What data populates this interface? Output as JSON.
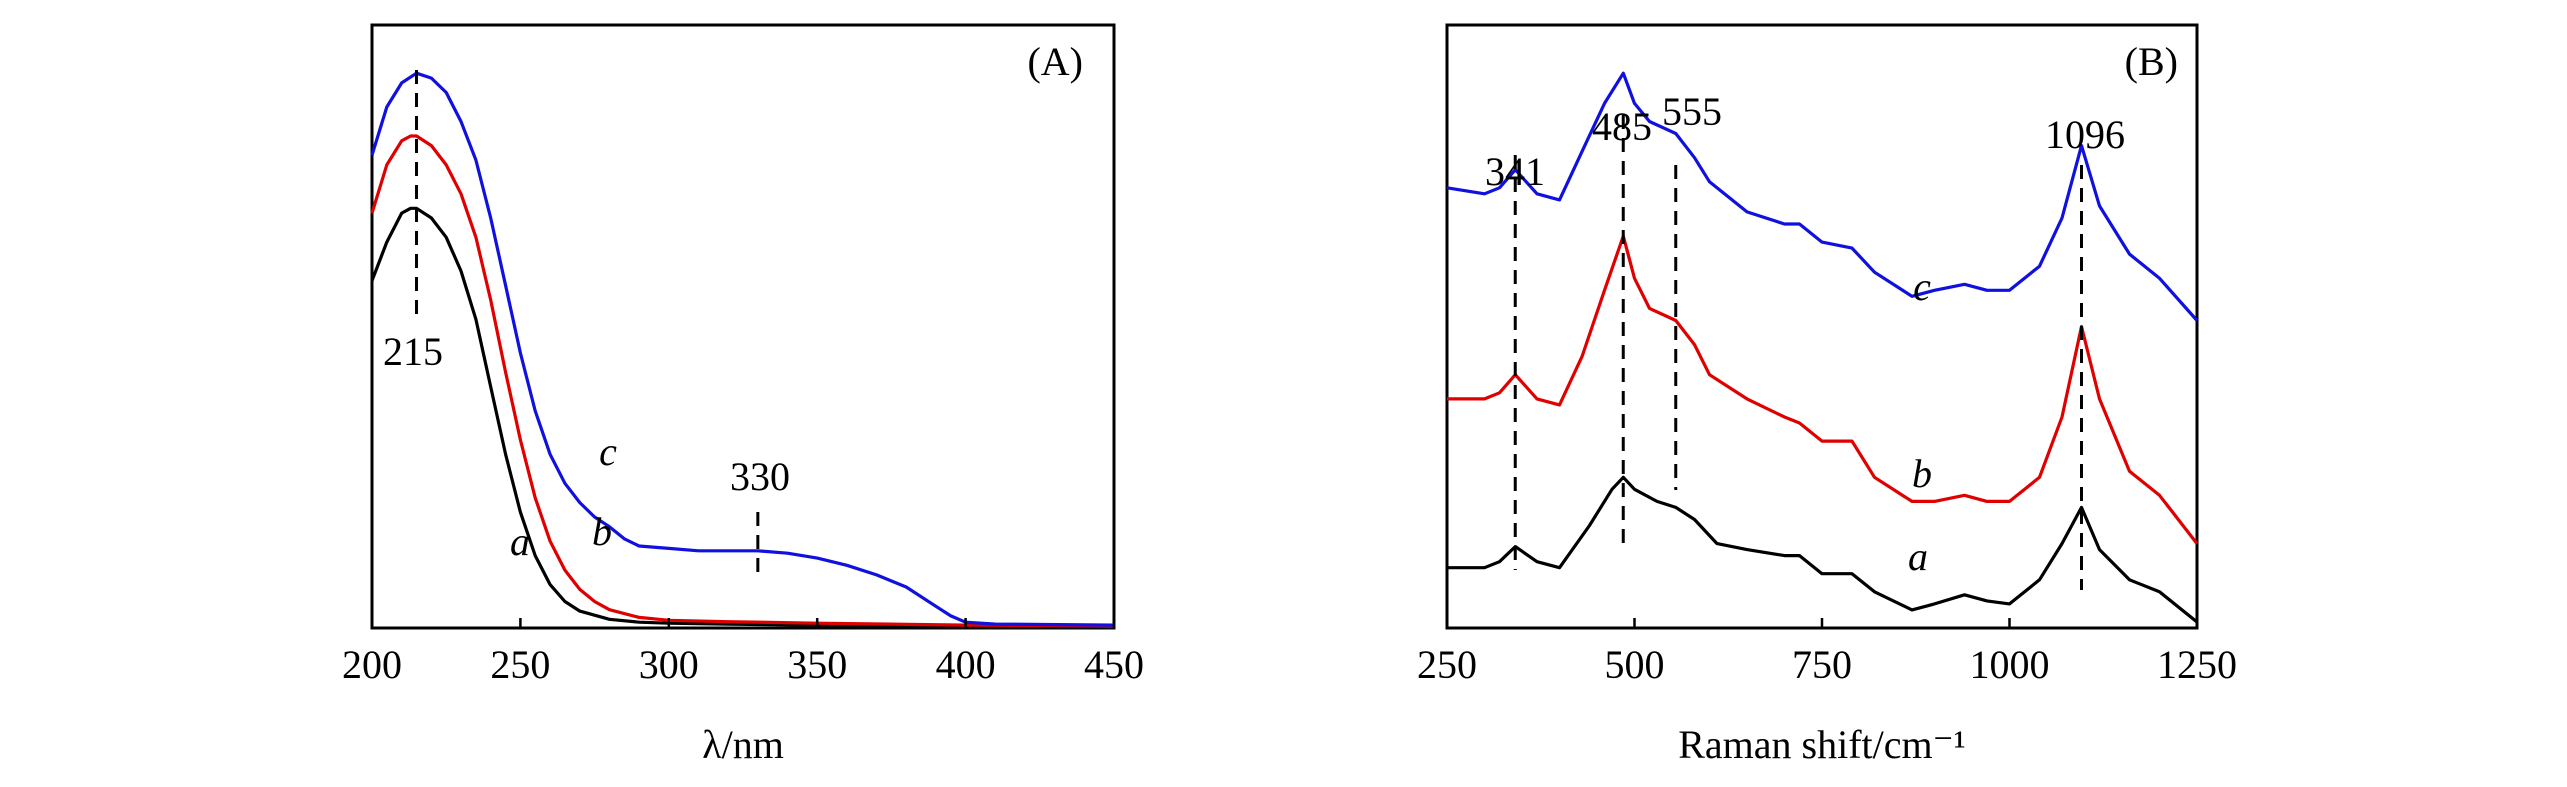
{
  "chart_data": [
    {
      "panel_label": "(A)",
      "type": "line",
      "xlabel": "λ/nm",
      "ylabel": "",
      "xlim": [
        200,
        450
      ],
      "ylim": [
        0,
        1.25
      ],
      "grid": false,
      "xticks": [
        200,
        250,
        300,
        350,
        400,
        450
      ],
      "series": [
        {
          "name": "a",
          "color": "#000000",
          "x": [
            200,
            205,
            210,
            213,
            215,
            220,
            225,
            230,
            235,
            240,
            245,
            250,
            255,
            260,
            265,
            270,
            280,
            290,
            300,
            320,
            350,
            400,
            450
          ],
          "y": [
            0.72,
            0.8,
            0.86,
            0.87,
            0.87,
            0.85,
            0.81,
            0.74,
            0.64,
            0.5,
            0.36,
            0.24,
            0.15,
            0.09,
            0.055,
            0.035,
            0.018,
            0.012,
            0.01,
            0.008,
            0.006,
            0.004,
            0.003
          ]
        },
        {
          "name": "b",
          "color": "#e00000",
          "x": [
            200,
            205,
            210,
            213,
            215,
            220,
            225,
            230,
            235,
            240,
            245,
            250,
            255,
            260,
            265,
            270,
            275,
            280,
            290,
            300,
            320,
            350,
            400,
            450
          ],
          "y": [
            0.86,
            0.96,
            1.01,
            1.02,
            1.02,
            1.0,
            0.96,
            0.9,
            0.81,
            0.68,
            0.53,
            0.39,
            0.27,
            0.18,
            0.12,
            0.08,
            0.055,
            0.038,
            0.022,
            0.016,
            0.013,
            0.01,
            0.006,
            0.004
          ]
        },
        {
          "name": "c",
          "color": "#1010e0",
          "x": [
            200,
            205,
            210,
            215,
            220,
            225,
            230,
            235,
            240,
            245,
            250,
            255,
            260,
            265,
            270,
            275,
            280,
            285,
            290,
            300,
            310,
            320,
            330,
            340,
            350,
            360,
            370,
            380,
            390,
            395,
            400,
            410,
            450
          ],
          "y": [
            0.98,
            1.08,
            1.13,
            1.15,
            1.14,
            1.11,
            1.05,
            0.97,
            0.85,
            0.71,
            0.57,
            0.45,
            0.36,
            0.3,
            0.26,
            0.23,
            0.21,
            0.185,
            0.17,
            0.165,
            0.16,
            0.16,
            0.16,
            0.155,
            0.145,
            0.13,
            0.11,
            0.085,
            0.045,
            0.025,
            0.012,
            0.008,
            0.006
          ]
        }
      ],
      "annotations": [
        {
          "text": "215",
          "x": 215,
          "type": "dashed-vline"
        },
        {
          "text": "330",
          "x": 330,
          "type": "dashed-tick"
        }
      ],
      "curve_labels": [
        {
          "text": "a",
          "series": "a"
        },
        {
          "text": "b",
          "series": "b"
        },
        {
          "text": "c",
          "series": "c"
        }
      ]
    },
    {
      "panel_label": "(B)",
      "type": "line",
      "xlabel": "Raman shift/cm⁻¹",
      "ylabel": "",
      "xlim": [
        250,
        1250
      ],
      "ylim": [
        0,
        1.0
      ],
      "grid": false,
      "xticks": [
        250,
        500,
        750,
        1000,
        1250
      ],
      "series": [
        {
          "name": "a",
          "color": "#000000",
          "x": [
            250,
            300,
            320,
            341,
            370,
            400,
            440,
            470,
            485,
            500,
            530,
            555,
            580,
            610,
            650,
            700,
            720,
            750,
            790,
            820,
            870,
            900,
            940,
            970,
            1000,
            1040,
            1070,
            1096,
            1120,
            1160,
            1200,
            1250
          ],
          "y": [
            0.1,
            0.1,
            0.11,
            0.135,
            0.11,
            0.1,
            0.17,
            0.23,
            0.25,
            0.23,
            0.21,
            0.2,
            0.18,
            0.14,
            0.13,
            0.12,
            0.12,
            0.09,
            0.09,
            0.06,
            0.03,
            0.04,
            0.055,
            0.045,
            0.04,
            0.08,
            0.14,
            0.2,
            0.13,
            0.08,
            0.06,
            0.01
          ]
        },
        {
          "name": "b",
          "color": "#e00000",
          "x": [
            250,
            300,
            320,
            341,
            370,
            400,
            430,
            460,
            485,
            500,
            520,
            555,
            580,
            600,
            650,
            700,
            720,
            750,
            790,
            820,
            870,
            900,
            940,
            970,
            1000,
            1040,
            1070,
            1096,
            1120,
            1160,
            1200,
            1250
          ],
          "y": [
            0.38,
            0.38,
            0.39,
            0.42,
            0.38,
            0.37,
            0.45,
            0.56,
            0.65,
            0.58,
            0.53,
            0.51,
            0.47,
            0.42,
            0.38,
            0.35,
            0.34,
            0.31,
            0.31,
            0.25,
            0.21,
            0.21,
            0.22,
            0.21,
            0.21,
            0.25,
            0.35,
            0.5,
            0.38,
            0.26,
            0.22,
            0.14
          ]
        },
        {
          "name": "c",
          "color": "#1010e0",
          "x": [
            250,
            300,
            320,
            341,
            370,
            400,
            430,
            460,
            485,
            500,
            520,
            555,
            580,
            600,
            650,
            700,
            720,
            750,
            790,
            820,
            870,
            900,
            940,
            970,
            1000,
            1040,
            1070,
            1096,
            1120,
            1160,
            1200,
            1250
          ],
          "y": [
            0.73,
            0.72,
            0.73,
            0.76,
            0.72,
            0.71,
            0.79,
            0.87,
            0.92,
            0.87,
            0.84,
            0.82,
            0.78,
            0.74,
            0.69,
            0.67,
            0.67,
            0.64,
            0.63,
            0.59,
            0.55,
            0.56,
            0.57,
            0.56,
            0.56,
            0.6,
            0.68,
            0.8,
            0.7,
            0.62,
            0.58,
            0.51
          ]
        }
      ],
      "annotations": [
        {
          "text": "341",
          "x": 341,
          "type": "dashed-vline"
        },
        {
          "text": "485",
          "x": 485,
          "type": "dashed-vline"
        },
        {
          "text": "555",
          "x": 555,
          "type": "dashed-vline"
        },
        {
          "text": "1096",
          "x": 1096,
          "type": "dashed-vline"
        }
      ],
      "curve_labels": [
        {
          "text": "a",
          "series": "a"
        },
        {
          "text": "b",
          "series": "b"
        },
        {
          "text": "c",
          "series": "c"
        }
      ]
    }
  ]
}
